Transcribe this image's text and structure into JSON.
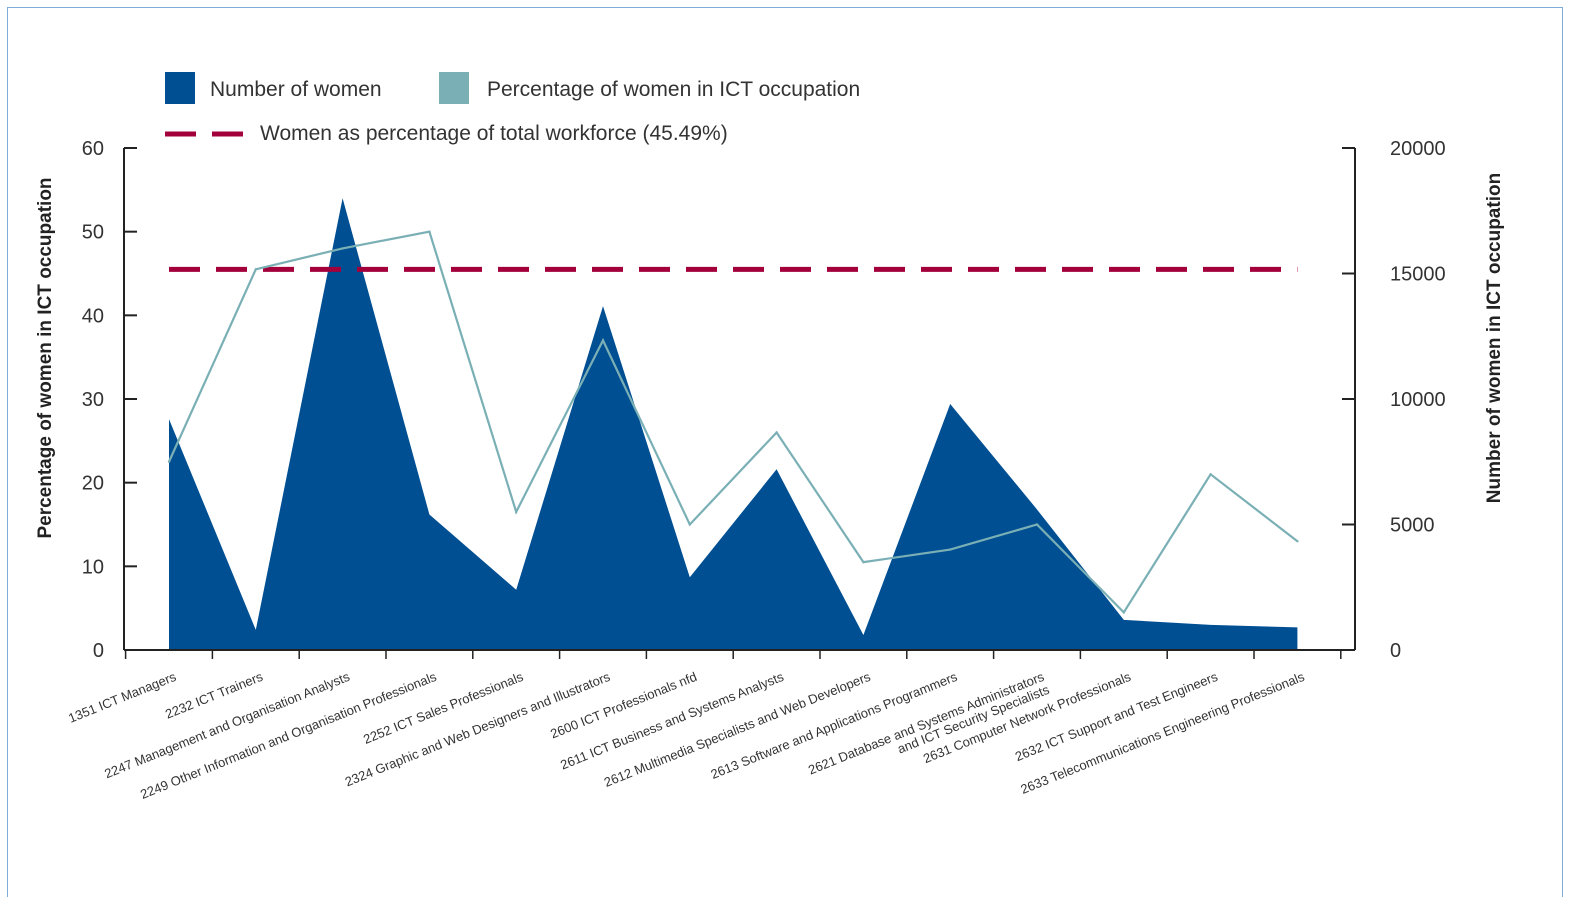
{
  "chart_data": {
    "type": "area",
    "legend": {
      "number_of_women": "Number of women",
      "percentage": "Percentage of women in ICT occupation",
      "reference": "Women as percentage of total workforce (45.49%)"
    },
    "ylabel_left": "Percentage of women in ICT occupation",
    "ylabel_right": "Number of women in ICT occupation",
    "ylim_left": [
      0,
      60
    ],
    "ylim_right": [
      0,
      20000
    ],
    "yticks_left": [
      0,
      10,
      20,
      30,
      40,
      50,
      60
    ],
    "yticks_right": [
      0,
      5000,
      10000,
      15000,
      20000
    ],
    "reference_line": 45.49,
    "categories": [
      [
        "1351 ICT Managers"
      ],
      [
        "2232 ICT Trainers"
      ],
      [
        "2247 Management and Organisation Analysts"
      ],
      [
        "2249 Other Information and Organisation Professionals"
      ],
      [
        "2252 ICT Sales Professionals"
      ],
      [
        "2324 Graphic and Web Designers and Illustrators"
      ],
      [
        "2600 ICT Professionals nfd"
      ],
      [
        "2611 ICT Business and Systems Analysts"
      ],
      [
        "2612 Multimedia Specialists and Web Developers"
      ],
      [
        "2613 Software and Applications Programmers"
      ],
      [
        "2621 Database and Systems Administrators",
        "and ICT Security Specialists"
      ],
      [
        "2631 Computer Network Professionals"
      ],
      [
        "2632 ICT Support and Test Engineers"
      ],
      [
        "2633 Telecommunications Engineering Professionals"
      ]
    ],
    "series": [
      {
        "name": "Number of women",
        "type": "area",
        "axis": "right",
        "values": [
          9200,
          800,
          18000,
          5400,
          2400,
          13700,
          2900,
          7200,
          600,
          9800,
          5600,
          1200,
          1000,
          900
        ]
      },
      {
        "name": "Percentage of women in ICT occupation",
        "type": "line",
        "axis": "left",
        "values": [
          22.5,
          45.5,
          48,
          50,
          16.5,
          37,
          15,
          26,
          10.5,
          12,
          15,
          4.5,
          21,
          13
        ]
      }
    ],
    "colors": {
      "area": "#004f93",
      "line": "#7ab0b5",
      "reference": "#a3003b"
    }
  }
}
